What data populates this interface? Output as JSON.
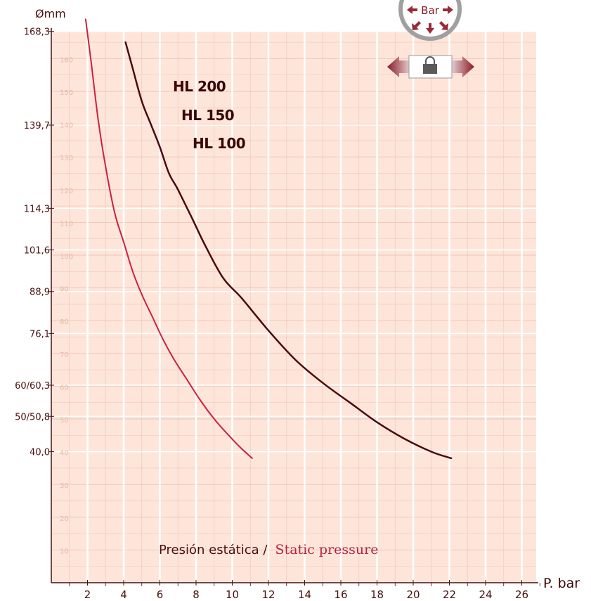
{
  "chart_data": {
    "type": "line",
    "title": "",
    "xlabel": "P. bar",
    "ylabel": "Ømm",
    "xlim": [
      0,
      27
    ],
    "ylim": [
      0,
      168.3
    ],
    "x_ticks": [
      2,
      4,
      6,
      8,
      10,
      12,
      14,
      16,
      18,
      20,
      22,
      24,
      26
    ],
    "y_tick_labels": [
      {
        "value": 168.3,
        "label": "168,3"
      },
      {
        "value": 139.7,
        "label": "139,7"
      },
      {
        "value": 114.3,
        "label": "114,3"
      },
      {
        "value": 101.6,
        "label": "101,6"
      },
      {
        "value": 88.9,
        "label": "88,9"
      },
      {
        "value": 76.1,
        "label": "76,1"
      },
      {
        "value": 60.3,
        "label": "60/60,3"
      },
      {
        "value": 50.8,
        "label": "50/50,8"
      },
      {
        "value": 40.0,
        "label": "40,0"
      }
    ],
    "grid_numbers": [
      10,
      20,
      30,
      40,
      50,
      60,
      70,
      80,
      90,
      100,
      110,
      120,
      130,
      140,
      150,
      160
    ],
    "grid": true,
    "series": [
      {
        "color": "#c8233e",
        "x": [
          1.9,
          2.2,
          2.6,
          3.0,
          3.5,
          4.0,
          4.5,
          5.0,
          5.6,
          6.2,
          6.8,
          7.5,
          8.2,
          9.0,
          9.8,
          10.5,
          11.1
        ],
        "y": [
          172,
          159,
          141,
          127,
          113,
          104,
          95,
          88,
          81,
          74,
          68,
          62,
          56,
          50,
          45,
          41,
          38
        ]
      },
      {
        "color": "#4a0a10",
        "x": [
          4.1,
          4.5,
          5.0,
          5.5,
          6.0,
          6.5,
          7.0,
          7.8,
          8.5,
          9.5,
          10.5,
          12.0,
          13.5,
          15.0,
          16.5,
          18.0,
          19.5,
          21.0,
          22.1
        ],
        "y": [
          165,
          157,
          147,
          140,
          133,
          125,
          120,
          111,
          103,
          93,
          87,
          77,
          68,
          61,
          55,
          49,
          44,
          40,
          38
        ]
      }
    ],
    "annotations": [
      "HL 200",
      "HL 150",
      "HL 100"
    ],
    "caption_es": "Presión estática /",
    "caption_en": "Static pressure",
    "badge_label": "Bar"
  }
}
